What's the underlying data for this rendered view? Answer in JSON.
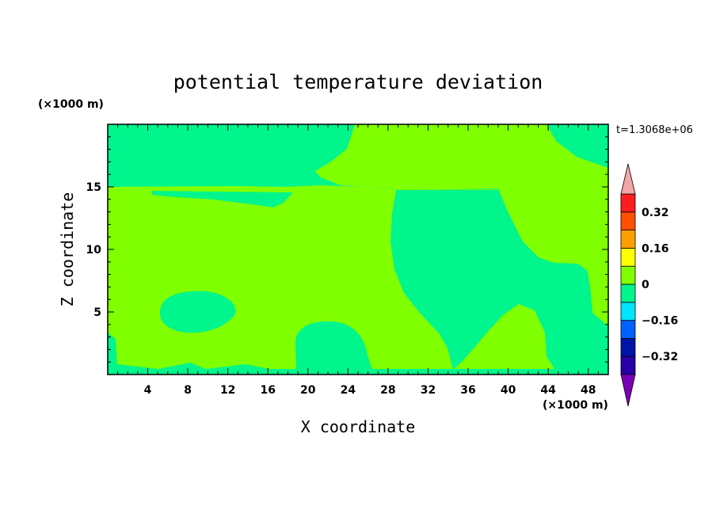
{
  "chart_data": {
    "type": "heatmap",
    "title": "potential temperature deviation",
    "xlabel": "X coordinate",
    "ylabel": "Z coordinate",
    "x_unit": "(×1000 m)",
    "y_unit": "(×1000 m)",
    "time_label": "t=1.3068e+06",
    "xlim": [
      0,
      50
    ],
    "ylim": [
      0,
      20
    ],
    "x_ticks": [
      4,
      8,
      12,
      16,
      20,
      24,
      28,
      32,
      36,
      40,
      44,
      48
    ],
    "y_ticks": [
      5,
      10,
      15
    ],
    "colorbar": {
      "levels": [
        -0.4,
        -0.32,
        -0.24,
        -0.16,
        -0.08,
        0,
        0.08,
        0.16,
        0.24,
        0.32,
        0.4
      ],
      "labels": [
        "0.32",
        "0.16",
        "0",
        "−0.16",
        "−0.32"
      ],
      "colors": [
        "#7a00b8",
        "#2a00a8",
        "#0014a8",
        "#0060ff",
        "#00e5ff",
        "#00f58c",
        "#80ff00",
        "#ffff00",
        "#ffa000",
        "#ff5000",
        "#ff1e1e",
        "#f4a6a6"
      ],
      "extend": "both"
    },
    "fields": {
      "background_value": 0.04,
      "background_color": "#80ff00",
      "region_color": "#00f58c",
      "region_value": -0.04,
      "regions": [
        "upper layer (z>15)",
        "mid-domain plume (x≈28–38)",
        "thin band near z≈14",
        "blob near x≈8, z≈5",
        "blob near x≈21, z≈3",
        "right-side intrusion (x≈40–50)",
        "surface strip"
      ]
    }
  }
}
